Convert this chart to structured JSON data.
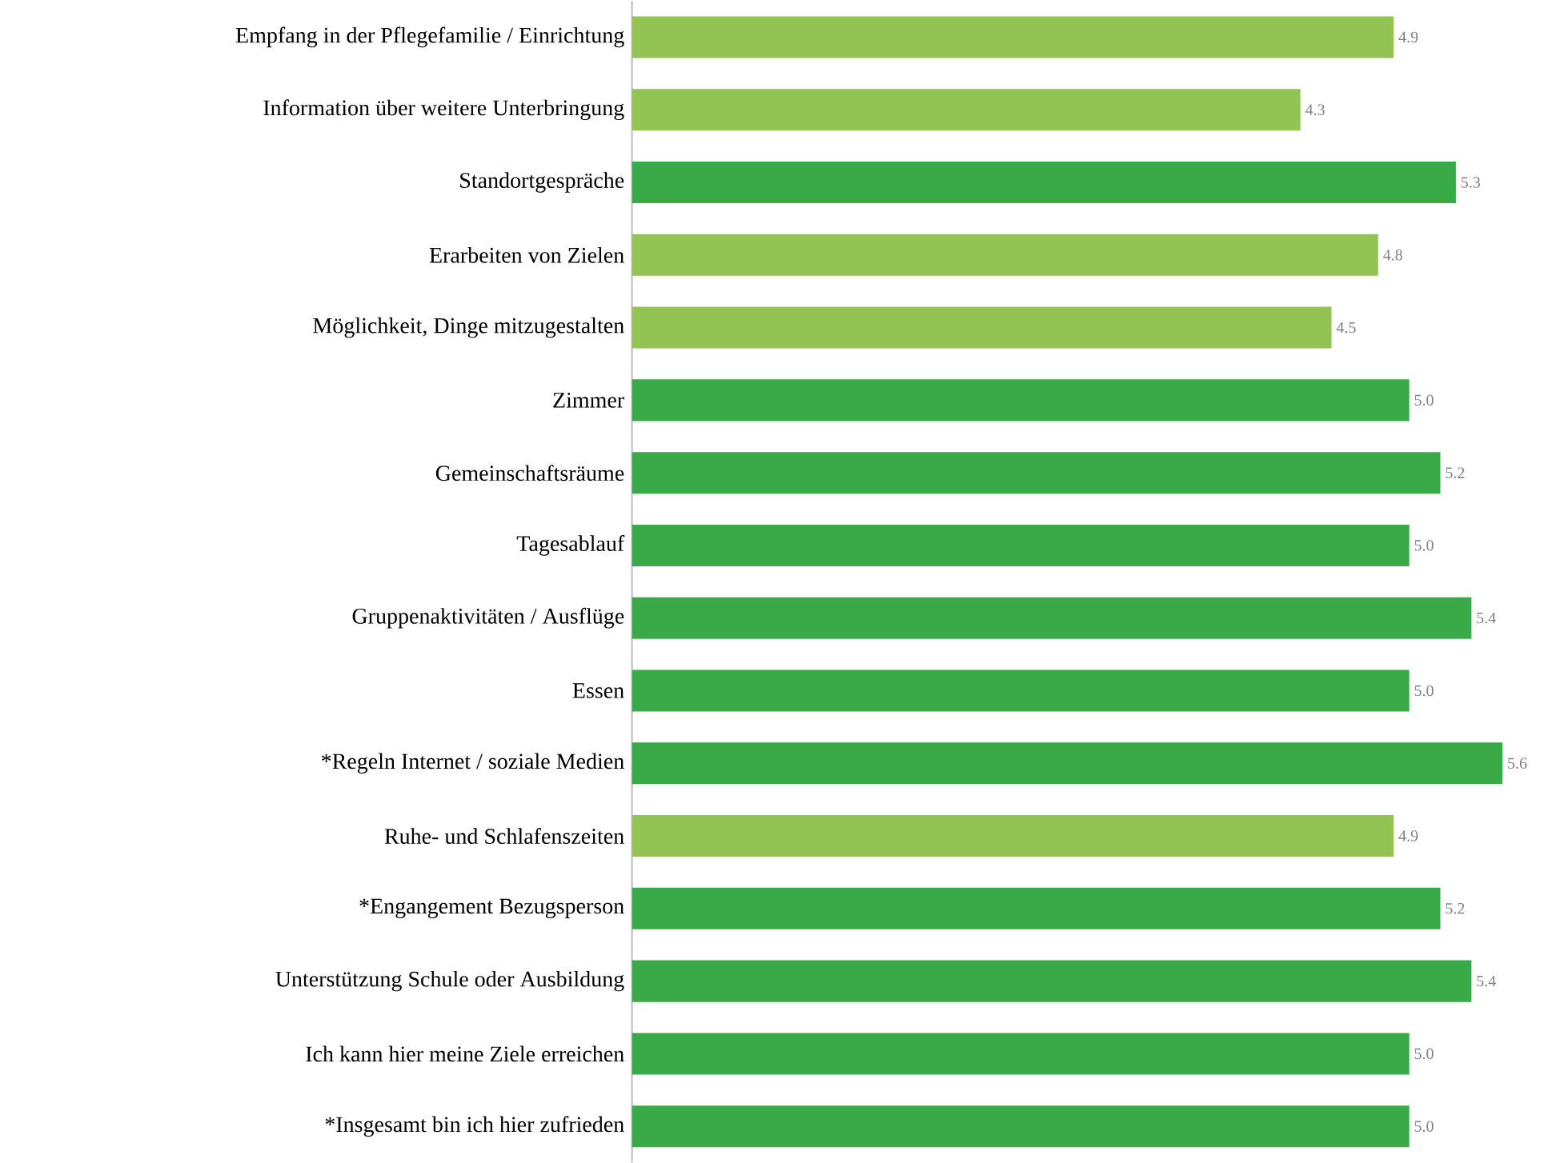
{
  "chart_data": {
    "type": "bar",
    "orientation": "horizontal",
    "value_labels": [
      "4.9",
      "4.3",
      "5.3",
      "4.8",
      "4.5",
      "5.0",
      "5.2",
      "5.0",
      "5.4",
      "5.0",
      "5.6",
      "4.9",
      "5.2",
      "5.4",
      "5.0",
      "5.0"
    ],
    "categories": [
      "Empfang in der Pflegefamilie / Einrichtung",
      "Information über weitere Unterbringung",
      "Standortgespräche",
      "Erarbeiten von Zielen",
      "Möglichkeit, Dinge mitzugestalten",
      "Zimmer",
      "Gemeinschaftsräume",
      "Tagesablauf",
      "Gruppenaktivitäten / Ausflüge",
      "Essen",
      "*Regeln Internet / soziale Medien",
      "Ruhe- und Schlafenszeiten",
      "*Engangement Bezugsperson",
      "Unterstützung Schule oder Ausbildung",
      "Ich kann hier meine Ziele erreichen",
      "*Insgesamt bin ich hier zufrieden"
    ],
    "values": [
      4.9,
      4.3,
      5.3,
      4.8,
      4.5,
      5.0,
      5.2,
      5.0,
      5.4,
      5.0,
      5.6,
      4.9,
      5.2,
      5.4,
      5.0,
      5.0
    ],
    "colors": [
      "#92c353",
      "#92c353",
      "#3aaa48",
      "#92c353",
      "#92c353",
      "#3aaa48",
      "#3aaa48",
      "#3aaa48",
      "#3aaa48",
      "#3aaa48",
      "#3aaa48",
      "#92c353",
      "#3aaa48",
      "#3aaa48",
      "#3aaa48",
      "#3aaa48"
    ]
  }
}
